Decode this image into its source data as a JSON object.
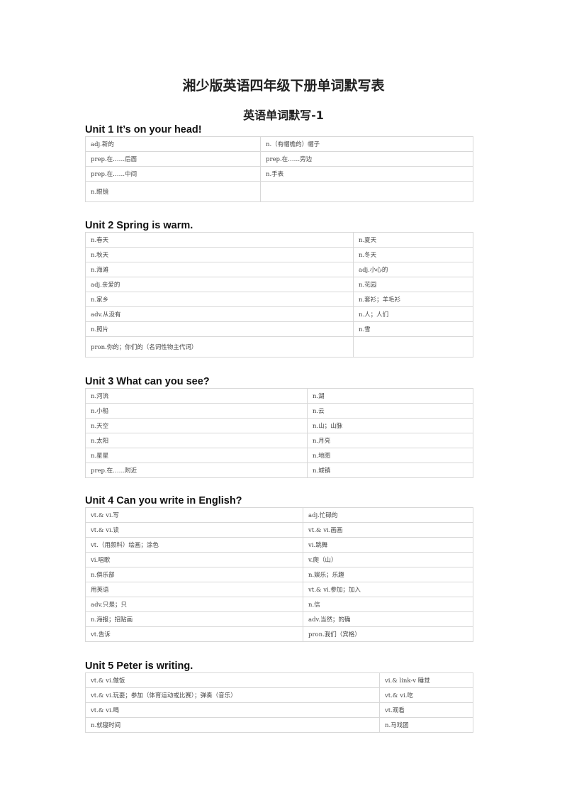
{
  "title": "湘少版英语四年级下册单词默写表",
  "subtitle": "英语单词默写-1",
  "units": [
    {
      "heading": "Unit 1 It’s on your head!",
      "rows": [
        [
          "adj.新的",
          "n.（有帽檐的）帽子"
        ],
        [
          "prep.在……后面",
          "prep.在……旁边"
        ],
        [
          "prep.在……中间",
          "n.手表"
        ],
        [
          "n.眼镜",
          ""
        ]
      ]
    },
    {
      "heading": "Unit 2 Spring is warm.",
      "rows": [
        [
          "n.春天",
          "n.夏天"
        ],
        [
          "n.秋天",
          "n.冬天"
        ],
        [
          "n.海滩",
          "adj.小心的"
        ],
        [
          "adj.亲爱的",
          "n.花园"
        ],
        [
          "n.家乡",
          "n.套衫；羊毛衫"
        ],
        [
          "adv.从没有",
          "n.人；人们"
        ],
        [
          "n.照片",
          "n.雪"
        ],
        [
          "pron.你的；你们的（名词性物主代词）",
          ""
        ]
      ]
    },
    {
      "heading": "Unit 3 What can you see?",
      "rows": [
        [
          "n.河流",
          "n.湖"
        ],
        [
          "n.小船",
          "n.云"
        ],
        [
          "n.天空",
          "n.山；山脉"
        ],
        [
          "n.太阳",
          "n.月亮"
        ],
        [
          "n.星星",
          "n.地图"
        ],
        [
          "prep.在……附近",
          "n.城镇"
        ]
      ]
    },
    {
      "heading": "Unit 4 Can you write in English?",
      "rows": [
        [
          "vt.& vi.写",
          "adj.忙碌的"
        ],
        [
          "vt.& vi.读",
          "vt.& vi.画画"
        ],
        [
          "vt.（用颜料）绘画；涂色",
          "vi.跳舞"
        ],
        [
          "vi.唱歌",
          "v.爬（山）"
        ],
        [
          "n.俱乐部",
          "n.娱乐；乐趣"
        ],
        [
          "用英语",
          "vt.& vi.参加；加入"
        ],
        [
          "adv.只是；只",
          "n.信"
        ],
        [
          "n.海报；招贴画",
          "adv.当然；的确"
        ],
        [
          "vt.告诉",
          "pron.我们（宾格）"
        ]
      ]
    },
    {
      "heading": "Unit 5 Peter is writing.",
      "rows": [
        [
          "vt.& vi.做饭",
          "vi.& link-v 睡觉"
        ],
        [
          "vt.& vi.玩耍；参加（体育运动或比赛）；弹奏（音乐）",
          "vt.& vi.吃"
        ],
        [
          "vt.& vi.喝",
          "vt.观看"
        ],
        [
          "n.就寝时间",
          "n.马戏团"
        ]
      ]
    }
  ]
}
